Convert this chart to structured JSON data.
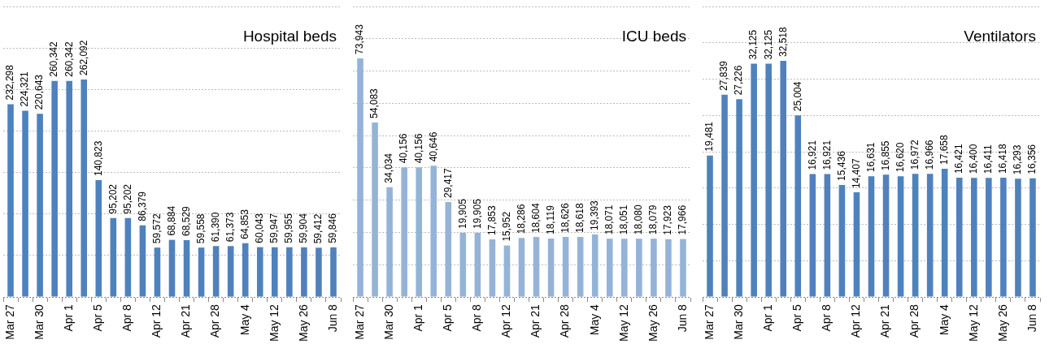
{
  "chart_data": [
    {
      "type": "bar",
      "title": "Hospital beds",
      "categories": [
        "Mar 27",
        null,
        "Mar 30",
        null,
        "Apr 1",
        null,
        "Apr 5",
        null,
        "Apr 8",
        null,
        "Apr 12",
        null,
        "Apr 21",
        null,
        "Apr 28",
        null,
        "May 4",
        null,
        "May 12",
        null,
        "May 26",
        null,
        "Jun 8"
      ],
      "values": [
        232298,
        224321,
        220643,
        260342,
        260342,
        262092,
        140823,
        95202,
        95202,
        86379,
        59572,
        68884,
        68529,
        59558,
        61390,
        61373,
        64853,
        60043,
        59947,
        59955,
        59904,
        59412,
        59846
      ],
      "value_labels": [
        "232,298",
        "224,321",
        "220,643",
        "260,342",
        "260,342",
        "262,092",
        "140,823",
        "95,202",
        "95,202",
        "86,379",
        "59,572",
        "68,884",
        "68,529",
        "59,558",
        "61,390",
        "61,373",
        "64,853",
        "60,043",
        "59,947",
        "59,955",
        "59,904",
        "59,412",
        "59,846"
      ],
      "color": "#4f81bd",
      "grid": "y",
      "tick_labels": "x",
      "legend": false
    },
    {
      "type": "bar",
      "title": "ICU beds",
      "categories": [
        "Mar 27",
        null,
        "Mar 30",
        null,
        "Apr 1",
        null,
        "Apr 5",
        null,
        "Apr 8",
        null,
        "Apr 12",
        null,
        "Apr 21",
        null,
        "Apr 28",
        null,
        "May 4",
        null,
        "May 12",
        null,
        "May 26",
        null,
        "Jun 8"
      ],
      "values": [
        73943,
        54083,
        34034,
        40156,
        40156,
        40646,
        29417,
        19905,
        19905,
        17853,
        15952,
        18286,
        18604,
        18119,
        18626,
        18618,
        19393,
        18071,
        18051,
        18080,
        18079,
        17923,
        17966
      ],
      "value_labels": [
        "73,943",
        "54,083",
        "34,034",
        "40,156",
        "40,156",
        "40,646",
        "29,417",
        "19,905",
        "19,905",
        "17,853",
        "15,952",
        "18,286",
        "18,604",
        "18,119",
        "18,626",
        "18,618",
        "19,393",
        "18,071",
        "18,051",
        "18,080",
        "18,079",
        "17,923",
        "17,966"
      ],
      "color": "#95b3d7",
      "grid": "y",
      "tick_labels": "x",
      "legend": false
    },
    {
      "type": "bar",
      "title": "Ventilators",
      "categories": [
        "Mar 27",
        null,
        "Mar 30",
        null,
        "Apr 1",
        null,
        "Apr 5",
        null,
        "Apr 8",
        null,
        "Apr 12",
        null,
        "Apr 21",
        null,
        "Apr 28",
        null,
        "May 4",
        null,
        "May 12",
        null,
        "May 26",
        null,
        "Jun 8"
      ],
      "values": [
        19481,
        27839,
        27226,
        32125,
        32125,
        32518,
        25004,
        16921,
        16921,
        15436,
        14407,
        16631,
        16855,
        16620,
        16972,
        16966,
        17658,
        16421,
        16400,
        16411,
        16418,
        16293,
        16356
      ],
      "value_labels": [
        "19,481",
        "27,839",
        "27,226",
        "32,125",
        "32,125",
        "32,518",
        "25,004",
        "16,921",
        "16,921",
        "15,436",
        "14,407",
        "16,631",
        "16,855",
        "16,620",
        "16,972",
        "16,966",
        "17,658",
        "16,421",
        "16,400",
        "16,411",
        "16,418",
        "16,293",
        "16,356"
      ],
      "color": "#4f81bd",
      "grid": "y",
      "tick_labels": "x",
      "legend": false
    }
  ]
}
